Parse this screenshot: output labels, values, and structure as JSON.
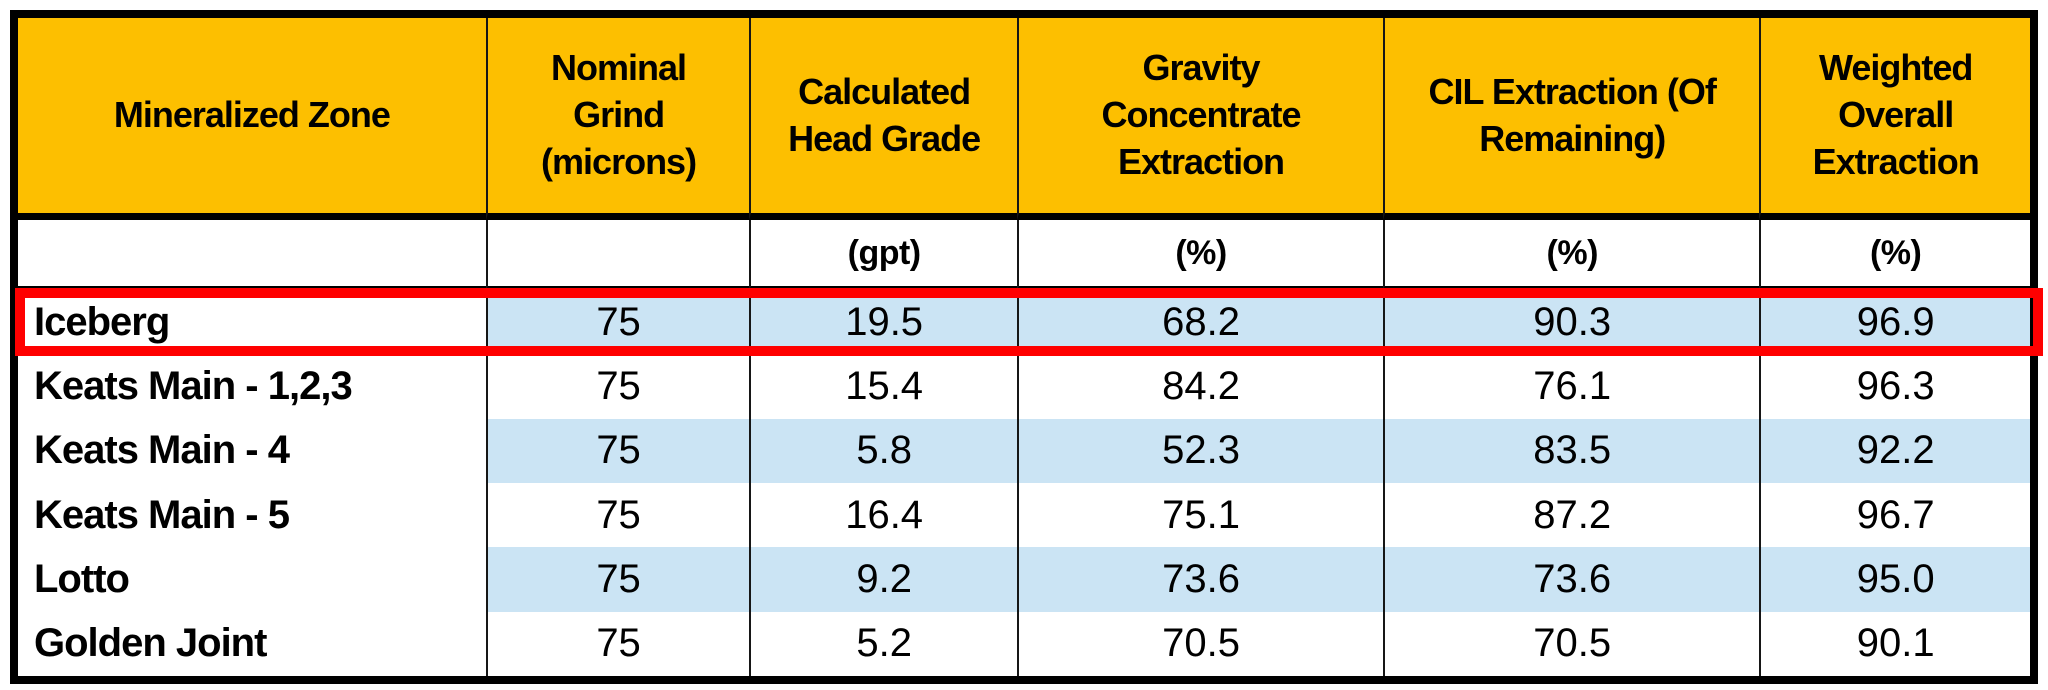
{
  "table": {
    "columns": [
      {
        "label": "Mineralized Zone",
        "unit": ""
      },
      {
        "label": "Nominal Grind (microns)",
        "unit": ""
      },
      {
        "label": "Calculated Head Grade",
        "unit": "(gpt)"
      },
      {
        "label": "Gravity Concentrate Extraction",
        "unit": "(%)"
      },
      {
        "label": "CIL Extraction (Of Remaining)",
        "unit": "(%)"
      },
      {
        "label": "Weighted Overall Extraction",
        "unit": "(%)"
      }
    ],
    "rows": [
      {
        "zone": "Iceberg",
        "values": [
          "75",
          "19.5",
          "68.2",
          "90.3",
          "96.9"
        ],
        "striped": true,
        "highlighted": true
      },
      {
        "zone": "Keats Main - 1,2,3",
        "values": [
          "75",
          "15.4",
          "84.2",
          "76.1",
          "96.3"
        ],
        "striped": false,
        "highlighted": false
      },
      {
        "zone": "Keats Main - 4",
        "values": [
          "75",
          "5.8",
          "52.3",
          "83.5",
          "92.2"
        ],
        "striped": true,
        "highlighted": false
      },
      {
        "zone": "Keats Main - 5",
        "values": [
          "75",
          "16.4",
          "75.1",
          "87.2",
          "96.7"
        ],
        "striped": false,
        "highlighted": false
      },
      {
        "zone": "Lotto",
        "values": [
          "75",
          "9.2",
          "73.6",
          "73.6",
          "95.0"
        ],
        "striped": true,
        "highlighted": false
      },
      {
        "zone": "Golden Joint",
        "values": [
          "75",
          "5.2",
          "70.5",
          "70.5",
          "90.1"
        ],
        "striped": false,
        "highlighted": false
      }
    ],
    "colors": {
      "header_bg": "#FDBF00",
      "stripe_bg": "#CBE4F4",
      "highlight_border": "#FF0000",
      "grid_line": "#161616",
      "text": "#000000"
    }
  },
  "chart_data": {
    "type": "table",
    "title": "",
    "columns": [
      "Mineralized Zone",
      "Nominal Grind (microns)",
      "Calculated Head Grade (gpt)",
      "Gravity Concentrate Extraction (%)",
      "CIL Extraction (Of Remaining) (%)",
      "Weighted Overall Extraction (%)"
    ],
    "rows": [
      [
        "Iceberg",
        75,
        19.5,
        68.2,
        90.3,
        96.9
      ],
      [
        "Keats Main - 1,2,3",
        75,
        15.4,
        84.2,
        76.1,
        96.3
      ],
      [
        "Keats Main - 4",
        75,
        5.8,
        52.3,
        83.5,
        92.2
      ],
      [
        "Keats Main - 5",
        75,
        16.4,
        75.1,
        87.2,
        96.7
      ],
      [
        "Lotto",
        75,
        9.2,
        73.6,
        73.6,
        95.0
      ],
      [
        "Golden Joint",
        75,
        5.2,
        70.5,
        70.5,
        90.1
      ]
    ],
    "highlighted_row": "Iceberg",
    "layout": {
      "header_fill": "gold",
      "zebra_striping": "data columns only, alternating from Iceberg",
      "gridlines": "vertical only between columns; heavy outer frame; rules under header and units rows"
    }
  }
}
